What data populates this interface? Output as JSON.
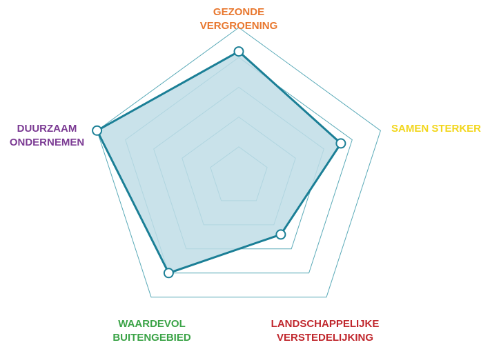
{
  "chart_data": {
    "type": "radar",
    "title": "",
    "max": 5,
    "rings": 5,
    "axes": [
      {
        "label_lines": [
          "GEZONDE",
          "VERGROENING"
        ],
        "color": "#e8772e",
        "value": 4.2
      },
      {
        "label_lines": [
          "SAMEN STERKER"
        ],
        "color": "#f2d61b",
        "value": 3.6
      },
      {
        "label_lines": [
          "LANDSCHAPPELIJKE",
          "VERSTEDELIJKING"
        ],
        "color": "#c0272d",
        "value": 2.4
      },
      {
        "label_lines": [
          "WAARDEVOL",
          "BUITENGEBIED"
        ],
        "color": "#3aa346",
        "value": 4.0
      },
      {
        "label_lines": [
          "DUURZAAM",
          "ONDERNEMEN"
        ],
        "color": "#7b3a93",
        "value": 5.0
      }
    ],
    "colors": {
      "grid": "#5aaab8",
      "series_stroke": "#1b7f96",
      "series_fill": "#bfdde6",
      "marker_fill": "#ffffff"
    }
  }
}
